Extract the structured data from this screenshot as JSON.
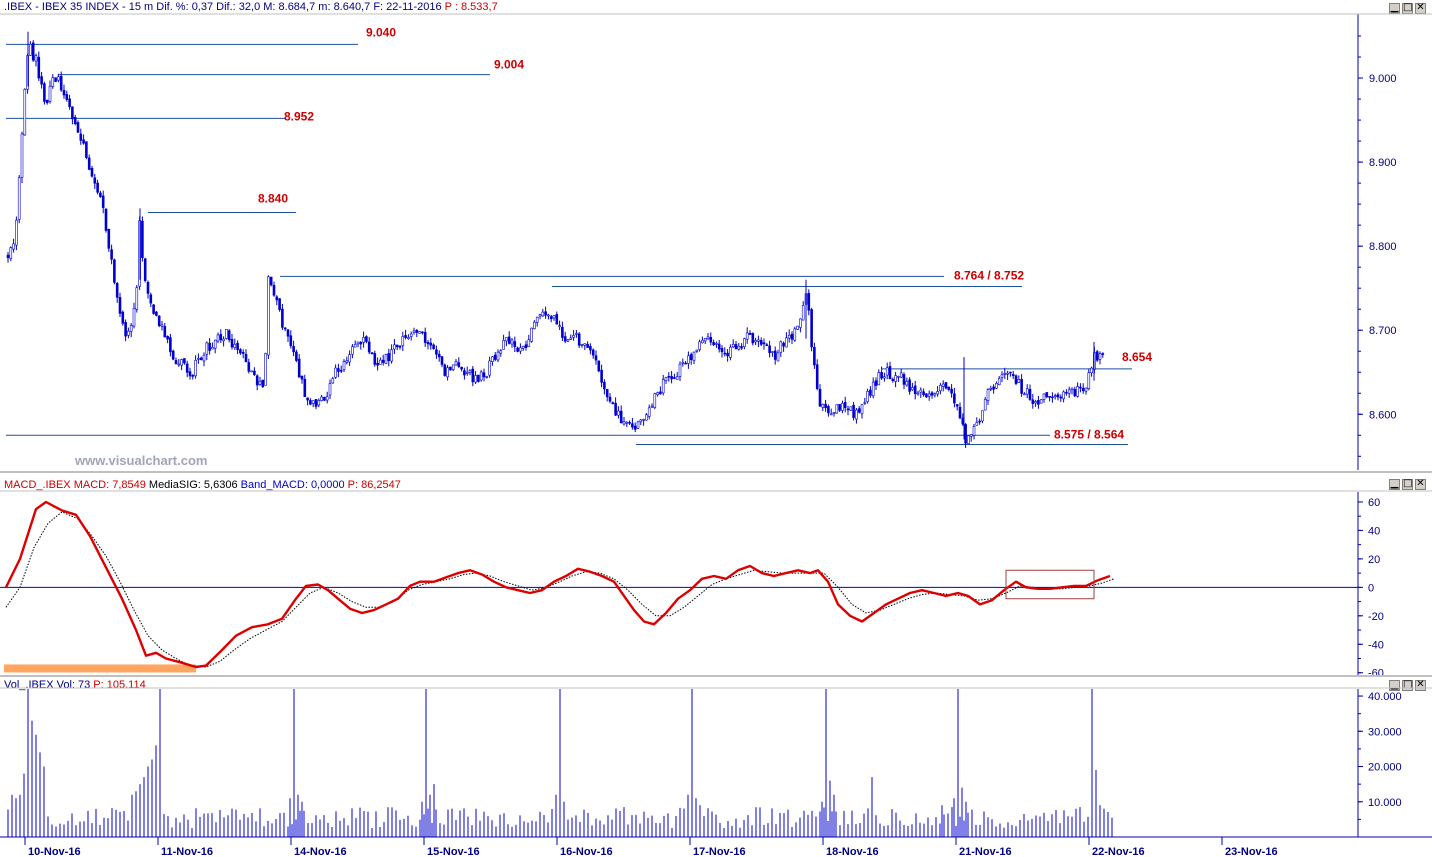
{
  "price_header": {
    "symbol": ".IBEX - IBEX 35 INDEX - ",
    "interval": "15 m",
    "dif_pct": " Dif. %: 0,37",
    "dif": " Dif.: 32,0",
    "max": " M: 8.684,7",
    "min": " m: 8.640,7",
    "date": " F: 22-11-2016",
    "cursor": " P : 8.533,7"
  },
  "macd_header": {
    "name": "MACD_.IBEX",
    "macd": " MACD: 7,8549",
    "signal": " MediaSIG: 5,6306",
    "band": " Band_MACD: 0,0000",
    "cursor": " P: 86,2547"
  },
  "vol_header": {
    "name": "Vol_.IBEX",
    "vol": " Vol: 73",
    "cursor": " P: 105.114"
  },
  "watermark": "www.visualchart.com",
  "window_buttons": {
    "minimize": "▁",
    "maximize": "□",
    "close": "✕"
  },
  "colors": {
    "candle": "#0000cc",
    "level_line": "#1e50a0",
    "level_label": "#cc0000",
    "macd": "#dd0000",
    "signal": "#000000",
    "zero": "#0000cc",
    "volume": "#0000cc",
    "highlight": "#ffa560",
    "axis": "#0000aa"
  },
  "chart_data": [
    {
      "type": "candlestick",
      "x_labels": [
        "10-Nov-16",
        "11-Nov-16",
        "14-Nov-16",
        "15-Nov-16",
        "16-Nov-16",
        "17-Nov-16",
        "18-Nov-16",
        "21-Nov-16",
        "22-Nov-16",
        "23-Nov-16"
      ],
      "y_ticks": [
        "9.000",
        "8.900",
        "8.800",
        "8.700",
        "8.600"
      ],
      "ylim": [
        8533.7,
        9075
      ],
      "levels": [
        {
          "label": "9.040",
          "value": 9040
        },
        {
          "label": "9.004",
          "value": 9004
        },
        {
          "label": "8.952",
          "value": 8952
        },
        {
          "label": "8.840",
          "value": 8840
        },
        {
          "label": "8.764 / 8.752",
          "value": 8764,
          "value2": 8752
        },
        {
          "label": "8.654",
          "value": 8654
        },
        {
          "label": "8.575 / 8.564",
          "value": 8575,
          "value2": 8564
        }
      ],
      "anchors": [
        [
          0,
          8790
        ],
        [
          8,
          8800
        ],
        [
          14,
          8890
        ],
        [
          22,
          9040
        ],
        [
          30,
          9020
        ],
        [
          40,
          8970
        ],
        [
          48,
          9005
        ],
        [
          56,
          8990
        ],
        [
          64,
          8960
        ],
        [
          74,
          8935
        ],
        [
          84,
          8890
        ],
        [
          96,
          8850
        ],
        [
          106,
          8780
        ],
        [
          114,
          8720
        ],
        [
          122,
          8690
        ],
        [
          130,
          8730
        ],
        [
          134,
          8835
        ],
        [
          138,
          8760
        ],
        [
          146,
          8720
        ],
        [
          156,
          8700
        ],
        [
          166,
          8670
        ],
        [
          178,
          8660
        ],
        [
          186,
          8650
        ],
        [
          194,
          8670
        ],
        [
          202,
          8680
        ],
        [
          212,
          8690
        ],
        [
          220,
          8695
        ],
        [
          230,
          8680
        ],
        [
          240,
          8660
        ],
        [
          250,
          8640
        ],
        [
          258,
          8625
        ],
        [
          262,
          8760
        ],
        [
          268,
          8740
        ],
        [
          276,
          8710
        ],
        [
          284,
          8690
        ],
        [
          292,
          8650
        ],
        [
          300,
          8620
        ],
        [
          310,
          8610
        ],
        [
          320,
          8625
        ],
        [
          330,
          8650
        ],
        [
          340,
          8665
        ],
        [
          350,
          8680
        ],
        [
          360,
          8690
        ],
        [
          370,
          8660
        ],
        [
          380,
          8665
        ],
        [
          390,
          8680
        ],
        [
          400,
          8690
        ],
        [
          410,
          8695
        ],
        [
          420,
          8690
        ],
        [
          430,
          8670
        ],
        [
          440,
          8650
        ],
        [
          450,
          8660
        ],
        [
          460,
          8650
        ],
        [
          470,
          8640
        ],
        [
          480,
          8650
        ],
        [
          490,
          8670
        ],
        [
          500,
          8690
        ],
        [
          510,
          8680
        ],
        [
          520,
          8680
        ],
        [
          530,
          8710
        ],
        [
          540,
          8725
        ],
        [
          550,
          8710
        ],
        [
          560,
          8690
        ],
        [
          570,
          8690
        ],
        [
          580,
          8680
        ],
        [
          590,
          8660
        ],
        [
          600,
          8630
        ],
        [
          610,
          8600
        ],
        [
          620,
          8590
        ],
        [
          630,
          8580
        ],
        [
          640,
          8600
        ],
        [
          650,
          8620
        ],
        [
          660,
          8640
        ],
        [
          670,
          8650
        ],
        [
          680,
          8660
        ],
        [
          690,
          8680
        ],
        [
          700,
          8690
        ],
        [
          710,
          8680
        ],
        [
          720,
          8670
        ],
        [
          730,
          8680
        ],
        [
          740,
          8690
        ],
        [
          750,
          8690
        ],
        [
          760,
          8680
        ],
        [
          770,
          8670
        ],
        [
          780,
          8690
        ],
        [
          790,
          8700
        ],
        [
          796,
          8715
        ],
        [
          800,
          8750
        ],
        [
          806,
          8680
        ],
        [
          812,
          8620
        ],
        [
          820,
          8600
        ],
        [
          830,
          8605
        ],
        [
          840,
          8610
        ],
        [
          850,
          8600
        ],
        [
          860,
          8620
        ],
        [
          870,
          8640
        ],
        [
          880,
          8650
        ],
        [
          890,
          8645
        ],
        [
          900,
          8640
        ],
        [
          910,
          8620
        ],
        [
          920,
          8625
        ],
        [
          930,
          8630
        ],
        [
          940,
          8630
        ],
        [
          950,
          8610
        ],
        [
          960,
          8570
        ],
        [
          970,
          8585
        ],
        [
          980,
          8620
        ],
        [
          990,
          8640
        ],
        [
          1000,
          8650
        ],
        [
          1010,
          8640
        ],
        [
          1020,
          8625
        ],
        [
          1030,
          8615
        ],
        [
          1040,
          8620
        ],
        [
          1050,
          8615
        ],
        [
          1060,
          8625
        ],
        [
          1070,
          8625
        ],
        [
          1080,
          8635
        ],
        [
          1088,
          8670
        ],
        [
          1096,
          8668
        ],
        [
          1100,
          8655
        ]
      ]
    },
    {
      "type": "line",
      "title": "MACD",
      "y_ticks": [
        "60",
        "40",
        "20",
        "0",
        "-20",
        "-40",
        "-60"
      ],
      "ylim": [
        -63,
        67
      ],
      "macd": [
        [
          0,
          0
        ],
        [
          14,
          20
        ],
        [
          30,
          55
        ],
        [
          40,
          60
        ],
        [
          56,
          54
        ],
        [
          70,
          51
        ],
        [
          84,
          36
        ],
        [
          100,
          14
        ],
        [
          116,
          -8
        ],
        [
          130,
          -30
        ],
        [
          140,
          -48
        ],
        [
          150,
          -46
        ],
        [
          160,
          -50
        ],
        [
          176,
          -53
        ],
        [
          190,
          -56
        ],
        [
          200,
          -55
        ],
        [
          216,
          -44
        ],
        [
          230,
          -34
        ],
        [
          246,
          -28
        ],
        [
          262,
          -26
        ],
        [
          276,
          -22
        ],
        [
          290,
          -8
        ],
        [
          300,
          1
        ],
        [
          312,
          2
        ],
        [
          322,
          -2
        ],
        [
          332,
          -8
        ],
        [
          344,
          -15
        ],
        [
          356,
          -18
        ],
        [
          368,
          -16
        ],
        [
          380,
          -12
        ],
        [
          392,
          -8
        ],
        [
          404,
          1
        ],
        [
          414,
          4
        ],
        [
          428,
          4
        ],
        [
          440,
          7
        ],
        [
          452,
          10
        ],
        [
          464,
          12
        ],
        [
          476,
          9
        ],
        [
          488,
          4
        ],
        [
          500,
          0
        ],
        [
          512,
          -2
        ],
        [
          524,
          -4
        ],
        [
          536,
          -2
        ],
        [
          548,
          4
        ],
        [
          560,
          8
        ],
        [
          572,
          13
        ],
        [
          584,
          11
        ],
        [
          596,
          8
        ],
        [
          608,
          4
        ],
        [
          618,
          -6
        ],
        [
          628,
          -16
        ],
        [
          638,
          -24
        ],
        [
          648,
          -26
        ],
        [
          660,
          -18
        ],
        [
          672,
          -8
        ],
        [
          684,
          -2
        ],
        [
          696,
          6
        ],
        [
          708,
          8
        ],
        [
          720,
          6
        ],
        [
          732,
          12
        ],
        [
          744,
          15
        ],
        [
          756,
          10
        ],
        [
          768,
          8
        ],
        [
          780,
          10
        ],
        [
          792,
          12
        ],
        [
          804,
          10
        ],
        [
          812,
          12
        ],
        [
          822,
          4
        ],
        [
          832,
          -12
        ],
        [
          844,
          -20
        ],
        [
          856,
          -24
        ],
        [
          868,
          -18
        ],
        [
          880,
          -12
        ],
        [
          892,
          -8
        ],
        [
          904,
          -4
        ],
        [
          916,
          -2
        ],
        [
          928,
          -4
        ],
        [
          940,
          -6
        ],
        [
          952,
          -4
        ],
        [
          962,
          -6
        ],
        [
          974,
          -12
        ],
        [
          986,
          -9
        ],
        [
          998,
          -2
        ],
        [
          1010,
          4
        ],
        [
          1020,
          0
        ],
        [
          1032,
          -1
        ],
        [
          1044,
          -1
        ],
        [
          1056,
          0
        ],
        [
          1068,
          1
        ],
        [
          1080,
          1
        ],
        [
          1092,
          5
        ],
        [
          1104,
          8
        ]
      ],
      "signal": [
        [
          0,
          -14
        ],
        [
          14,
          0
        ],
        [
          28,
          28
        ],
        [
          42,
          45
        ],
        [
          56,
          53
        ],
        [
          72,
          48
        ],
        [
          86,
          36
        ],
        [
          100,
          22
        ],
        [
          114,
          4
        ],
        [
          128,
          -16
        ],
        [
          142,
          -34
        ],
        [
          156,
          -44
        ],
        [
          170,
          -50
        ],
        [
          184,
          -55
        ],
        [
          200,
          -56
        ],
        [
          214,
          -52
        ],
        [
          228,
          -44
        ],
        [
          244,
          -36
        ],
        [
          260,
          -30
        ],
        [
          276,
          -24
        ],
        [
          290,
          -14
        ],
        [
          304,
          -4
        ],
        [
          318,
          0
        ],
        [
          332,
          -4
        ],
        [
          346,
          -10
        ],
        [
          360,
          -14
        ],
        [
          374,
          -14
        ],
        [
          388,
          -10
        ],
        [
          402,
          -2
        ],
        [
          416,
          2
        ],
        [
          430,
          4
        ],
        [
          444,
          6
        ],
        [
          458,
          9
        ],
        [
          470,
          10
        ],
        [
          484,
          8
        ],
        [
          498,
          4
        ],
        [
          512,
          1
        ],
        [
          526,
          -2
        ],
        [
          540,
          0
        ],
        [
          554,
          4
        ],
        [
          566,
          8
        ],
        [
          580,
          11
        ],
        [
          594,
          10
        ],
        [
          608,
          6
        ],
        [
          622,
          -2
        ],
        [
          636,
          -12
        ],
        [
          650,
          -20
        ],
        [
          664,
          -20
        ],
        [
          678,
          -14
        ],
        [
          692,
          -6
        ],
        [
          706,
          2
        ],
        [
          720,
          6
        ],
        [
          734,
          9
        ],
        [
          748,
          12
        ],
        [
          762,
          11
        ],
        [
          776,
          10
        ],
        [
          790,
          10
        ],
        [
          804,
          10
        ],
        [
          818,
          10
        ],
        [
          832,
          0
        ],
        [
          846,
          -12
        ],
        [
          860,
          -18
        ],
        [
          874,
          -16
        ],
        [
          888,
          -12
        ],
        [
          902,
          -8
        ],
        [
          916,
          -5
        ],
        [
          930,
          -4
        ],
        [
          944,
          -5
        ],
        [
          958,
          -6
        ],
        [
          972,
          -9
        ],
        [
          986,
          -8
        ],
        [
          1000,
          -4
        ],
        [
          1014,
          1
        ],
        [
          1028,
          0
        ],
        [
          1042,
          -1
        ],
        [
          1056,
          -1
        ],
        [
          1070,
          0
        ],
        [
          1084,
          1
        ],
        [
          1096,
          3
        ],
        [
          1108,
          6
        ]
      ],
      "zero_line": 0,
      "highlight_bar": {
        "start": 4,
        "end": 196,
        "value": -57
      },
      "box": {
        "start": 1006,
        "end": 1094,
        "ymin": -8,
        "ymax": 12
      }
    },
    {
      "type": "bar",
      "title": "Volume",
      "y_ticks": [
        "40.000",
        "30.000",
        "20.000",
        "10.000"
      ],
      "ylim": [
        0,
        42000
      ],
      "spikes": [
        [
          22,
          42000
        ],
        [
          26,
          33000
        ],
        [
          30,
          29000
        ],
        [
          34,
          24000
        ],
        [
          38,
          20000
        ],
        [
          18,
          18000
        ],
        [
          14,
          12000
        ],
        [
          10,
          11000
        ],
        [
          6,
          12000
        ],
        [
          154,
          42000
        ],
        [
          150,
          26000
        ],
        [
          146,
          22000
        ],
        [
          142,
          20000
        ],
        [
          138,
          17000
        ],
        [
          134,
          15000
        ],
        [
          130,
          13000
        ],
        [
          126,
          12000
        ],
        [
          288,
          42000
        ],
        [
          284,
          11000
        ],
        [
          292,
          12000
        ],
        [
          296,
          10000
        ],
        [
          420,
          42000
        ],
        [
          416,
          10000
        ],
        [
          424,
          12000
        ],
        [
          428,
          15000
        ],
        [
          554,
          42000
        ],
        [
          550,
          12000
        ],
        [
          558,
          10000
        ],
        [
          686,
          42000
        ],
        [
          682,
          12000
        ],
        [
          690,
          11000
        ],
        [
          694,
          9000
        ],
        [
          820,
          42000
        ],
        [
          816,
          10000
        ],
        [
          824,
          16000
        ],
        [
          828,
          12000
        ],
        [
          866,
          17000
        ],
        [
          936,
          9000
        ],
        [
          952,
          42000
        ],
        [
          948,
          11000
        ],
        [
          956,
          14000
        ],
        [
          960,
          10000
        ],
        [
          1086,
          42000
        ],
        [
          1090,
          19000
        ],
        [
          1094,
          9000
        ],
        [
          1098,
          8000
        ],
        [
          1102,
          7000
        ],
        [
          1106,
          5000
        ]
      ]
    }
  ]
}
